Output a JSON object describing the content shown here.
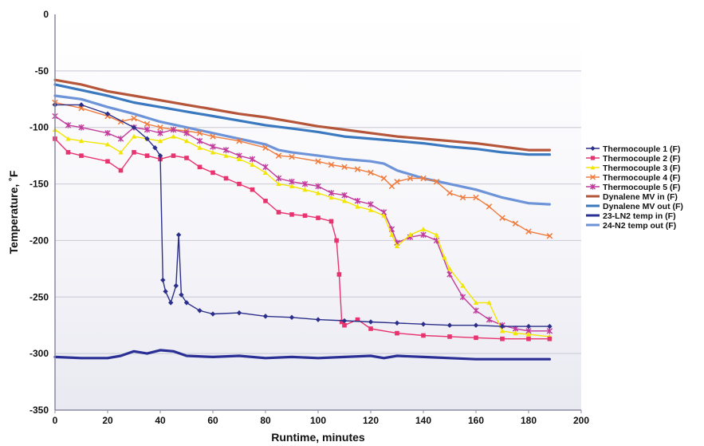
{
  "chart_data": {
    "type": "line",
    "xlabel": "Runtime, minutes",
    "ylabel": "Temperature, ˚F",
    "xlim": [
      0,
      200
    ],
    "ylim": [
      -350,
      0
    ],
    "xticks": [
      "0",
      "20",
      "40",
      "60",
      "80",
      "100",
      "120",
      "140",
      "160",
      "180",
      "200"
    ],
    "yticks": [
      "0",
      "-50",
      "-100",
      "-150",
      "-200",
      "-250",
      "-300",
      "-350"
    ],
    "grid": "horizontal",
    "legend_position": "right",
    "series": [
      {
        "name": "Thermocouple 1 (F)",
        "color": "#2b2f8a",
        "marker": "diamond",
        "x": [
          0,
          10,
          20,
          30,
          35,
          38,
          40,
          41,
          42,
          44,
          46,
          47,
          48,
          50,
          55,
          60,
          70,
          80,
          90,
          100,
          110,
          120,
          130,
          140,
          150,
          160,
          170,
          180,
          188
        ],
        "y": [
          -80,
          -80,
          -88,
          -100,
          -110,
          -118,
          -125,
          -235,
          -245,
          -255,
          -240,
          -195,
          -248,
          -255,
          -262,
          -265,
          -264,
          -267,
          -268,
          -270,
          -271,
          -272,
          -273,
          -274,
          -275,
          -275,
          -276,
          -276,
          -276
        ]
      },
      {
        "name": "Thermocouple 2 (F)",
        "color": "#e8336e",
        "marker": "square",
        "x": [
          0,
          5,
          10,
          20,
          25,
          30,
          35,
          40,
          45,
          50,
          55,
          60,
          65,
          70,
          75,
          80,
          85,
          90,
          95,
          100,
          105,
          107,
          108,
          109,
          110,
          115,
          120,
          130,
          140,
          150,
          160,
          170,
          180,
          188
        ],
        "y": [
          -110,
          -122,
          -125,
          -130,
          -138,
          -122,
          -125,
          -128,
          -125,
          -127,
          -135,
          -140,
          -145,
          -150,
          -155,
          -165,
          -175,
          -177,
          -178,
          -180,
          -183,
          -200,
          -230,
          -272,
          -275,
          -270,
          -278,
          -282,
          -284,
          -285,
          -286,
          -287,
          -287,
          -287
        ]
      },
      {
        "name": "Thermocouple 3 (F)",
        "color": "#f2e600",
        "marker": "triangle",
        "x": [
          0,
          5,
          10,
          20,
          25,
          30,
          35,
          40,
          45,
          50,
          55,
          60,
          65,
          70,
          75,
          80,
          85,
          90,
          95,
          100,
          105,
          110,
          115,
          120,
          125,
          128,
          130,
          135,
          140,
          145,
          148,
          150,
          155,
          160,
          165,
          170,
          175,
          180,
          188
        ],
        "y": [
          -102,
          -110,
          -112,
          -115,
          -122,
          -108,
          -110,
          -112,
          -108,
          -112,
          -118,
          -122,
          -125,
          -128,
          -133,
          -140,
          -150,
          -152,
          -155,
          -158,
          -162,
          -165,
          -170,
          -173,
          -178,
          -195,
          -205,
          -195,
          -190,
          -195,
          -215,
          -225,
          -240,
          -255,
          -255,
          -280,
          -282,
          -283,
          -285
        ]
      },
      {
        "name": "Thermocouple 4 (F)",
        "color": "#f07b3c",
        "marker": "x",
        "x": [
          0,
          10,
          20,
          25,
          30,
          35,
          40,
          45,
          50,
          55,
          60,
          70,
          80,
          85,
          90,
          100,
          105,
          110,
          115,
          120,
          125,
          128,
          130,
          135,
          140,
          145,
          150,
          155,
          160,
          165,
          170,
          175,
          180,
          188
        ],
        "y": [
          -78,
          -83,
          -90,
          -95,
          -92,
          -97,
          -100,
          -102,
          -103,
          -105,
          -108,
          -112,
          -118,
          -125,
          -126,
          -130,
          -133,
          -135,
          -137,
          -140,
          -145,
          -152,
          -148,
          -145,
          -145,
          -148,
          -158,
          -162,
          -162,
          -170,
          -180,
          -185,
          -192,
          -196
        ]
      },
      {
        "name": "Thermocouple 5 (F)",
        "color": "#c23a9b",
        "marker": "asterisk",
        "x": [
          0,
          5,
          10,
          20,
          25,
          30,
          35,
          40,
          45,
          50,
          55,
          60,
          65,
          70,
          75,
          80,
          85,
          90,
          95,
          100,
          105,
          110,
          115,
          120,
          125,
          128,
          130,
          135,
          140,
          145,
          150,
          155,
          160,
          165,
          170,
          175,
          180,
          188
        ],
        "y": [
          -90,
          -98,
          -100,
          -105,
          -110,
          -100,
          -102,
          -105,
          -102,
          -105,
          -112,
          -117,
          -120,
          -125,
          -128,
          -135,
          -145,
          -148,
          -150,
          -152,
          -158,
          -160,
          -165,
          -168,
          -175,
          -190,
          -202,
          -197,
          -195,
          -200,
          -230,
          -250,
          -262,
          -270,
          -275,
          -278,
          -280,
          -280
        ]
      },
      {
        "name": "Dynalene MV in (F)",
        "color": "#b5553a",
        "marker": "none",
        "x": [
          0,
          10,
          20,
          30,
          40,
          50,
          60,
          70,
          80,
          90,
          100,
          110,
          120,
          130,
          140,
          150,
          160,
          170,
          180,
          188
        ],
        "y": [
          -58,
          -62,
          -68,
          -72,
          -76,
          -80,
          -84,
          -88,
          -91,
          -95,
          -99,
          -102,
          -105,
          -108,
          -110,
          -112,
          -114,
          -117,
          -120,
          -120
        ]
      },
      {
        "name": "Dynalene MV out (F)",
        "color": "#3a78bf",
        "marker": "none",
        "x": [
          0,
          10,
          20,
          30,
          40,
          50,
          60,
          70,
          80,
          90,
          100,
          110,
          120,
          130,
          140,
          150,
          160,
          170,
          180,
          188
        ],
        "y": [
          -62,
          -67,
          -72,
          -78,
          -82,
          -86,
          -90,
          -94,
          -98,
          -101,
          -104,
          -108,
          -110,
          -112,
          -114,
          -117,
          -119,
          -122,
          -124,
          -124
        ]
      },
      {
        "name": "23-LN2 temp in (F)",
        "color": "#2a2f96",
        "marker": "none",
        "x": [
          0,
          10,
          20,
          25,
          30,
          35,
          40,
          45,
          50,
          60,
          70,
          80,
          90,
          100,
          110,
          120,
          125,
          130,
          140,
          150,
          160,
          170,
          180,
          188
        ],
        "y": [
          -303,
          -304,
          -304,
          -302,
          -298,
          -300,
          -297,
          -298,
          -302,
          -303,
          -302,
          -304,
          -303,
          -304,
          -303,
          -302,
          -304,
          -302,
          -303,
          -304,
          -305,
          -305,
          -305,
          -305
        ]
      },
      {
        "name": "24-N2 temp out (F)",
        "color": "#6d93d8",
        "marker": "none",
        "x": [
          0,
          10,
          20,
          30,
          40,
          50,
          60,
          70,
          80,
          85,
          90,
          100,
          110,
          120,
          125,
          130,
          140,
          150,
          160,
          170,
          180,
          188
        ],
        "y": [
          -72,
          -75,
          -82,
          -88,
          -95,
          -100,
          -105,
          -110,
          -115,
          -120,
          -122,
          -125,
          -128,
          -130,
          -132,
          -138,
          -145,
          -150,
          -155,
          -162,
          -167,
          -168
        ]
      }
    ]
  }
}
